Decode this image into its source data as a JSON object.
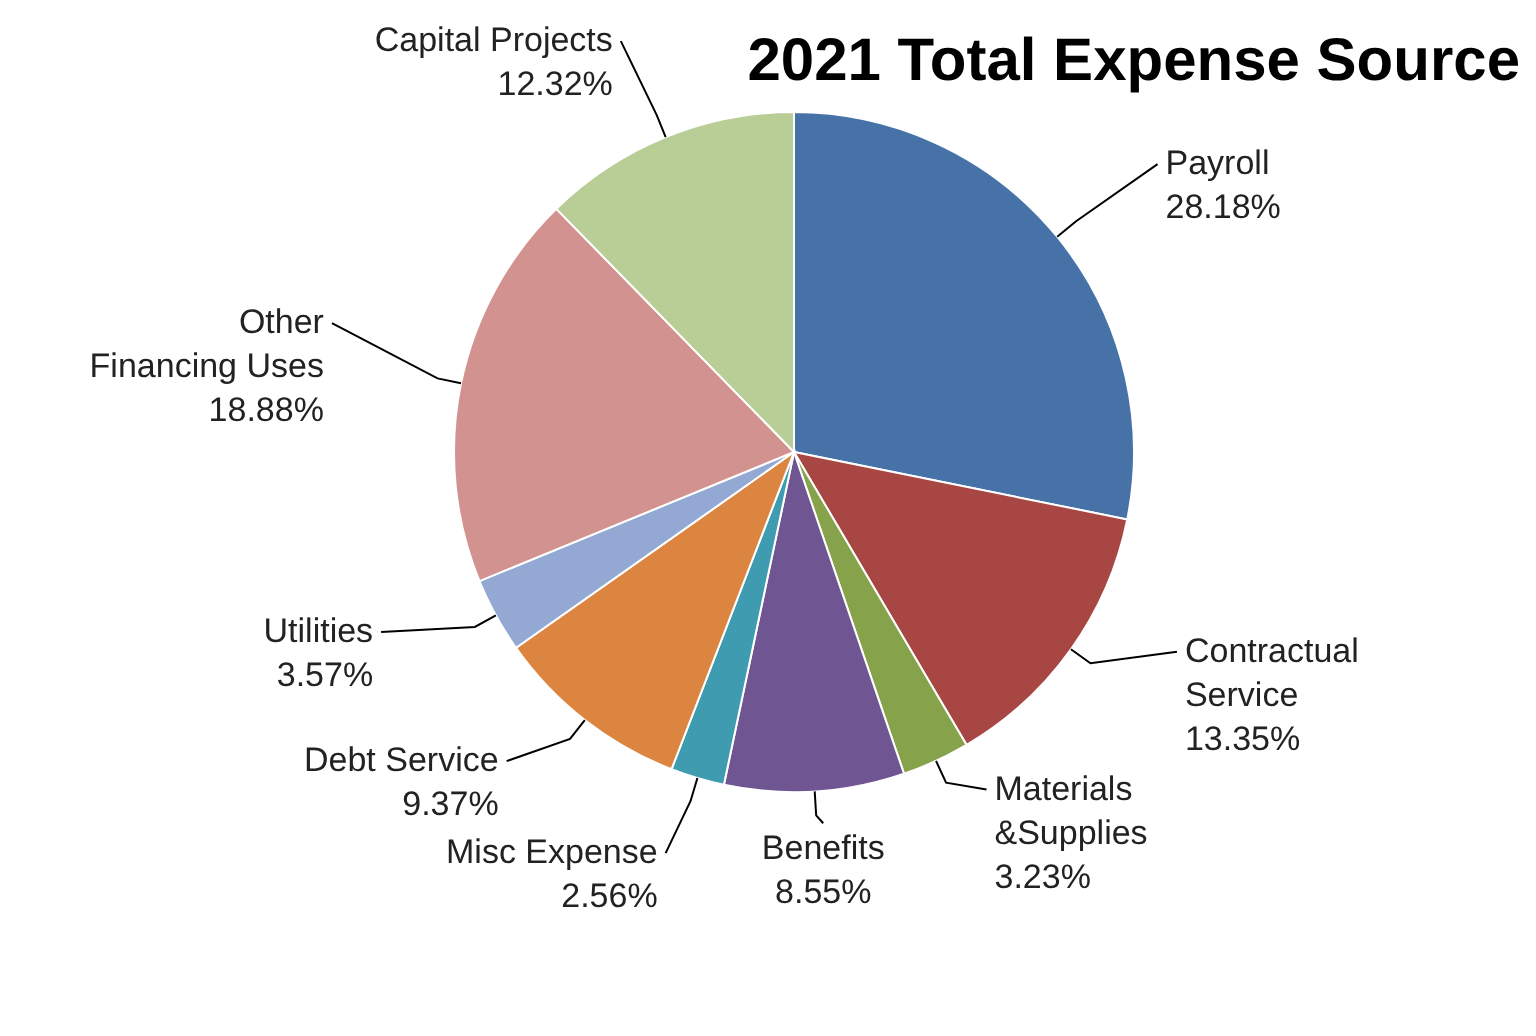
{
  "chart_data": {
    "type": "pie",
    "title": "2021 Total Expense Source",
    "categories": [
      "Payroll",
      "Contractual Service",
      "Materials &Supplies",
      "Benefits",
      "Misc Expense",
      "Debt Service",
      "Utilities",
      "Other Financing Uses",
      "Capital Projects"
    ],
    "values": [
      28.18,
      13.35,
      3.23,
      8.55,
      2.56,
      9.37,
      3.57,
      18.88,
      12.32
    ],
    "value_labels": [
      "28.18%",
      "13.35%",
      "3.23%",
      "8.55%",
      "2.56%",
      "9.37%",
      "3.57%",
      "18.88%",
      "12.32%"
    ],
    "colors": [
      "#4672a8",
      "#a84643",
      "#86a24a",
      "#6f5592",
      "#3e9bb0",
      "#db8540",
      "#93a9d4",
      "#d29290",
      "#b9cd96"
    ]
  }
}
